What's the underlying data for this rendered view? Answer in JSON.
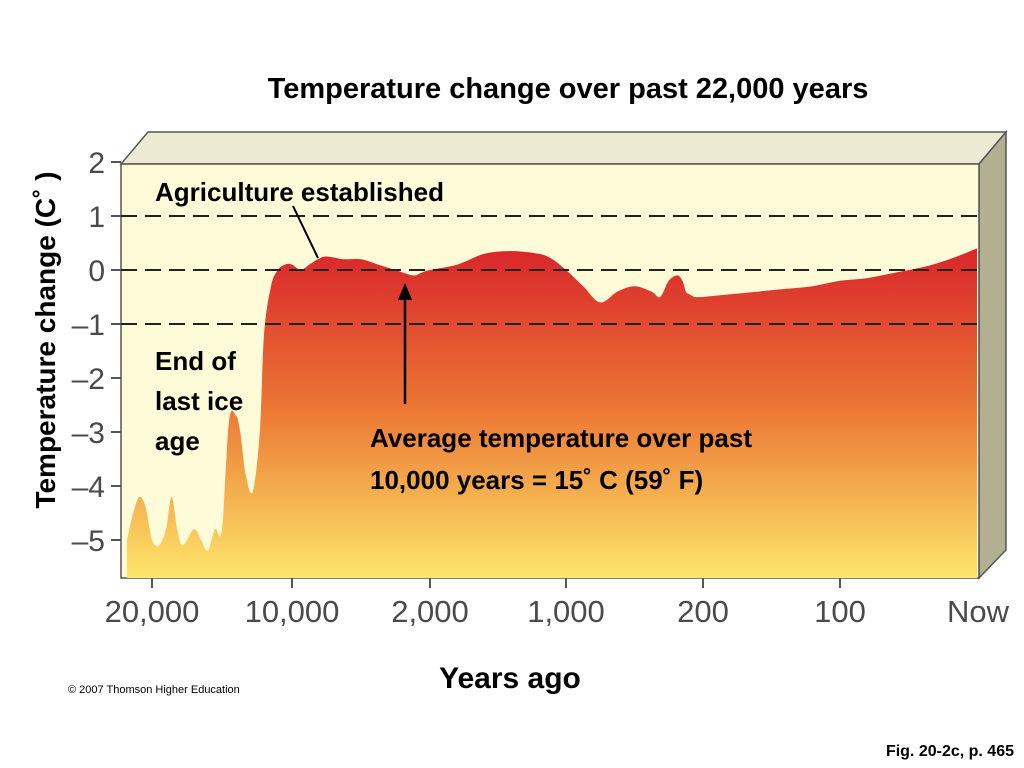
{
  "chart_data": {
    "type": "area",
    "title": "Temperature change over past 22,000 years",
    "xlabel": "Years ago",
    "ylabel": "Temperature change (C˚ )",
    "x_tick_labels": [
      "20,000",
      "10,000",
      "2,000",
      "1,000",
      "200",
      "100",
      "Now"
    ],
    "y_ticks": [
      2,
      1,
      0,
      -1,
      -2,
      -3,
      -4,
      -5
    ],
    "y_tick_labels": [
      "2",
      "1",
      "0",
      "–1",
      "–2",
      "–3",
      "–4",
      "–5"
    ],
    "ylim": [
      -5.7,
      2.1
    ],
    "x_scale": "nonlinear",
    "dashed_reference_lines": [
      1,
      0,
      -1
    ],
    "series": [
      {
        "x_years_ago": [
          22000,
          21500,
          21000,
          20500,
          20000,
          19500,
          19000,
          18600,
          18200,
          17800,
          17000,
          16500,
          16000,
          15500,
          15000,
          14500,
          14000,
          13700,
          13300,
          12800,
          12300,
          12000,
          11500,
          11000,
          10500,
          10000,
          9500,
          9000,
          8500,
          8000,
          7000,
          6000,
          5000,
          4000,
          3000,
          2500,
          2000,
          1800,
          1600,
          1400,
          1200,
          1100,
          1000,
          900,
          800,
          700,
          600,
          500,
          450,
          400,
          350,
          320,
          300,
          280,
          250,
          230,
          215,
          200,
          180,
          160,
          140,
          120,
          100,
          80,
          60,
          40,
          20,
          0
        ],
        "values": [
          -5.0,
          -4.5,
          -4.2,
          -4.4,
          -5.0,
          -5.1,
          -4.8,
          -4.2,
          -4.8,
          -5.1,
          -4.8,
          -5.0,
          -5.2,
          -4.8,
          -4.8,
          -2.8,
          -2.7,
          -3.0,
          -3.8,
          -4.1,
          -3.0,
          -1.2,
          -0.3,
          0.0,
          0.1,
          0.1,
          0.0,
          0.1,
          0.2,
          0.25,
          0.2,
          0.2,
          0.1,
          0.0,
          -0.1,
          -0.05,
          0.0,
          0.1,
          0.3,
          0.35,
          0.3,
          0.2,
          0.0,
          -0.3,
          -0.6,
          -0.4,
          -0.3,
          -0.4,
          -0.5,
          -0.2,
          -0.1,
          -0.2,
          -0.4,
          -0.45,
          -0.5,
          -0.5,
          -0.5,
          -0.5,
          -0.45,
          -0.4,
          -0.35,
          -0.3,
          -0.2,
          -0.15,
          -0.05,
          0.05,
          0.2,
          0.4
        ]
      }
    ],
    "annotations": [
      {
        "text": "Agriculture established"
      },
      {
        "lines": [
          "End of",
          "last ice",
          "age"
        ]
      },
      {
        "lines": [
          "Average temperature over past",
          "10,000 years = 15˚  C (59˚  F)"
        ]
      }
    ],
    "colors": {
      "background": "#fdfbd8",
      "fill_top": "#d9252b",
      "fill_bottom": "#fde66a",
      "box_side": "#b3b092",
      "box_top": "#ecead2"
    }
  },
  "footer": {
    "copyright": "© 2007 Thomson Higher Education",
    "figure_ref": "Fig. 20-2c, p. 465"
  }
}
